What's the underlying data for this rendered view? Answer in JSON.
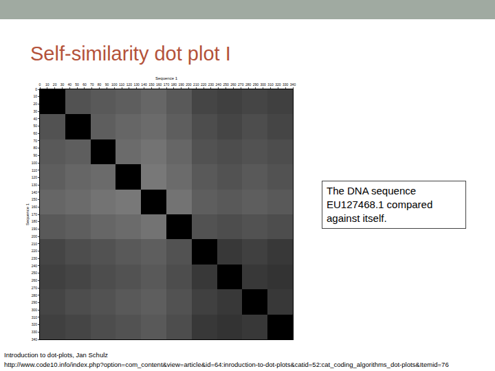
{
  "title": "Self-similarity dot plot I",
  "caption": "The DNA sequence EU127468.1 compared against itself.",
  "footer": [
    "Introduction to dot-plots, Jan Schulz",
    "http://www.code10.info/index.php?option=com_content&view=article&id=64:inroduction-to-dot-plots&catid=52:cat_coding_algorithms_dot-plots&Itemid=76"
  ],
  "chart_data": {
    "type": "heatmap",
    "x_label": "Sequence 1",
    "y_label": "Sequence 1",
    "xlim": [
      0,
      340
    ],
    "ylim": [
      340,
      0
    ],
    "xticks": [
      0,
      10,
      20,
      30,
      40,
      50,
      60,
      70,
      80,
      90,
      100,
      110,
      120,
      130,
      140,
      150,
      160,
      170,
      180,
      190,
      200,
      210,
      220,
      230,
      240,
      250,
      260,
      270,
      280,
      290,
      300,
      310,
      320,
      330,
      340
    ],
    "yticks": [
      0,
      10,
      20,
      30,
      40,
      50,
      60,
      70,
      80,
      90,
      100,
      110,
      120,
      130,
      140,
      150,
      160,
      170,
      180,
      190,
      200,
      210,
      220,
      230,
      240,
      250,
      260,
      270,
      280,
      290,
      300,
      310,
      320,
      330,
      340
    ],
    "cell_edges": [
      0,
      34,
      68,
      102,
      136,
      170,
      204,
      238,
      272,
      306,
      340
    ],
    "zlim": [
      0,
      1
    ],
    "cells": [
      [
        1,
        0.68,
        0.65,
        0.63,
        0.6,
        0.65,
        0.73,
        0.75,
        0.73,
        0.75
      ],
      [
        0.68,
        1,
        0.63,
        0.6,
        0.58,
        0.63,
        0.7,
        0.73,
        0.7,
        0.73
      ],
      [
        0.65,
        0.63,
        1,
        0.58,
        0.55,
        0.6,
        0.68,
        0.7,
        0.68,
        0.7
      ],
      [
        0.63,
        0.6,
        0.58,
        1,
        0.53,
        0.58,
        0.65,
        0.68,
        0.65,
        0.68
      ],
      [
        0.6,
        0.58,
        0.55,
        0.53,
        1,
        0.55,
        0.63,
        0.65,
        0.63,
        0.65
      ],
      [
        0.65,
        0.63,
        0.6,
        0.58,
        0.55,
        1,
        0.68,
        0.7,
        0.68,
        0.7
      ],
      [
        0.73,
        0.7,
        0.68,
        0.65,
        0.63,
        0.68,
        1,
        0.78,
        0.75,
        0.78
      ],
      [
        0.75,
        0.73,
        0.7,
        0.68,
        0.65,
        0.7,
        0.78,
        1,
        0.78,
        0.8
      ],
      [
        0.73,
        0.7,
        0.68,
        0.65,
        0.63,
        0.68,
        0.75,
        0.78,
        1,
        0.78
      ],
      [
        0.75,
        0.73,
        0.7,
        0.68,
        0.65,
        0.7,
        0.78,
        0.8,
        0.78,
        1
      ]
    ]
  }
}
